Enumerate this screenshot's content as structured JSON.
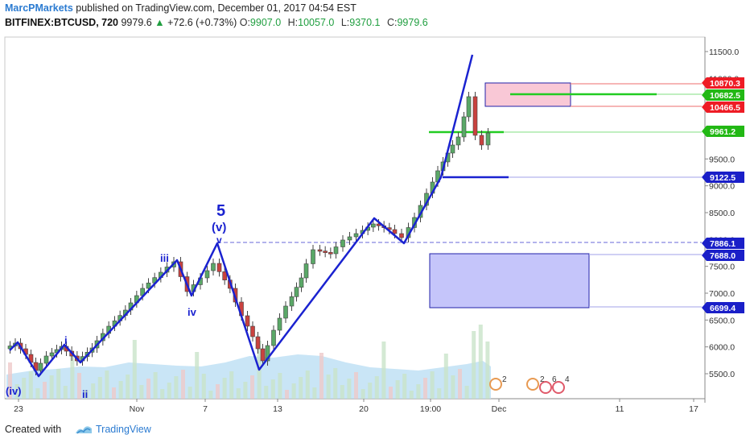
{
  "header": {
    "author": "MarcPMarkets",
    "published_text": "published on TradingView.com, December 01, 2017 04:54 EST",
    "symbol": "BITFINEX:BTCUSD, 720",
    "last_price": "9979.6",
    "change": "+72.6 (+0.73%)",
    "up_arrow": "▲",
    "open_label": "O:",
    "open_value": "9907.0",
    "high_label": "H:",
    "high_value": "10057.0",
    "low_label": "L:",
    "low_value": "9370.1",
    "close_label": "C:",
    "close_value": "9979.6"
  },
  "footer": {
    "created_with": "Created with",
    "brand": "TradingView"
  },
  "colors": {
    "wave_line": "#1a22d0",
    "bull_candle": "#5aa867",
    "bear_candle": "#c9423f",
    "volume_bull": "#c9e4c9",
    "volume_bear": "#efc9c9",
    "volume_area": "#bfe0f4",
    "green_line": "#22cc22",
    "red_line": "#f08a8a",
    "label_red": "#ee1c25",
    "label_green": "#22b814",
    "label_blue": "#1a1fc8",
    "box_red": "#f9c8d6",
    "box_blue": "#c5c5fa"
  },
  "chart_data": {
    "type": "candlestick",
    "price_axis_ticks": [
      "11500.0",
      "11000.0",
      "10500.0",
      "10000.0",
      "9500.0",
      "9000.0",
      "8500.0",
      "8000.0",
      "7500.0",
      "7000.0",
      "6500.0",
      "6000.0",
      "5500.0"
    ],
    "time_axis_ticks": [
      "23",
      "Nov",
      "7",
      "13",
      "20",
      "19:00",
      "Dec",
      "11",
      "17"
    ],
    "price_labels": [
      {
        "value": "10870.3",
        "color": "red"
      },
      {
        "value": "10682.5",
        "color": "green"
      },
      {
        "value": "10466.5",
        "color": "red"
      },
      {
        "value": "9961.2",
        "color": "green"
      },
      {
        "value": "9122.5",
        "color": "blue"
      },
      {
        "value": "7886.1",
        "color": "blue"
      },
      {
        "value": "7688.0",
        "color": "blue"
      },
      {
        "value": "6699.4",
        "color": "blue"
      }
    ],
    "wave_labels": [
      "(iv)",
      "i",
      "ii",
      "iii",
      "iv",
      "5",
      "(v)",
      "v"
    ],
    "wave_points": [
      {
        "price": 5950
      },
      {
        "price": 6070
      },
      {
        "price": 5850
      },
      {
        "price": 6450
      },
      {
        "price": 6300
      },
      {
        "price": 7500
      },
      {
        "price": 7000
      },
      {
        "price": 7800
      },
      {
        "price": 5600
      },
      {
        "price": 7900
      },
      {
        "price": 7600
      },
      {
        "price": 9800
      },
      {
        "price": 11400
      }
    ],
    "horizontal_levels": [
      10870.3,
      10682.5,
      10466.5,
      9961.2,
      9122.5,
      7886.1,
      7688.0,
      6699.4
    ],
    "target_box_high": {
      "from": 10466.5,
      "to": 10870.3
    },
    "target_box_low": {
      "from": 6699.4,
      "to": 7688.0
    },
    "event_markers": [
      "2",
      "2",
      "6",
      "4"
    ]
  }
}
